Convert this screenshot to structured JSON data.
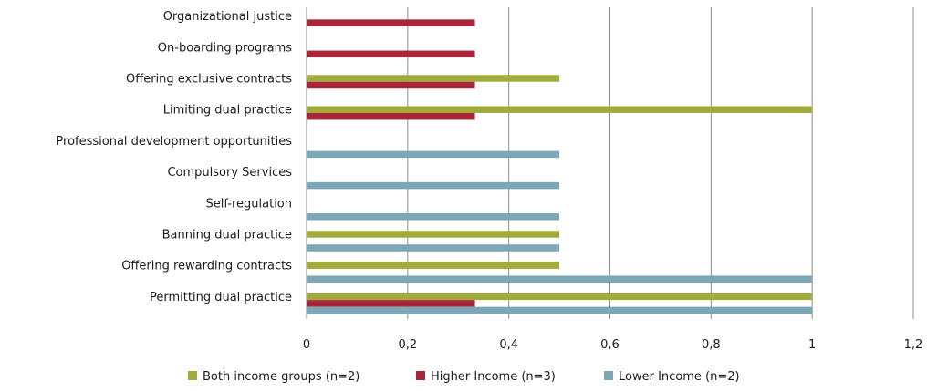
{
  "chart_data": {
    "type": "bar",
    "orientation": "horizontal",
    "categories": [
      "Organizational justice",
      "On-boarding programs",
      "Offering exclusive contracts",
      "Limiting dual practice ",
      "Professional development opportunities",
      "Compulsory Services ",
      "Self-regulation",
      "Banning dual practice",
      "Offering rewarding contracts",
      "Permitting dual practice"
    ],
    "series": [
      {
        "name": "Both income groups (n=2)",
        "color": "#a3ac3a",
        "values": [
          0,
          0,
          0.5,
          1,
          0,
          0,
          0,
          0.5,
          0.5,
          1
        ]
      },
      {
        "name": "Higher Income (n=3)",
        "color": "#a8263a",
        "values": [
          0.333,
          0.333,
          0.333,
          0.333,
          0,
          0,
          0,
          0,
          0,
          0.333
        ]
      },
      {
        "name": "Lower Income (n=2)",
        "color": "#7ba7b6",
        "values": [
          0,
          0,
          0,
          0,
          0.5,
          0.5,
          0.5,
          0.5,
          1,
          1
        ]
      }
    ],
    "xlim": [
      0,
      1.2
    ],
    "x_ticks": [
      "0",
      "0,2",
      "0,4",
      "0,6",
      "0,8",
      "1",
      "1,2"
    ],
    "grid": "vertical",
    "legend": "bottom"
  }
}
